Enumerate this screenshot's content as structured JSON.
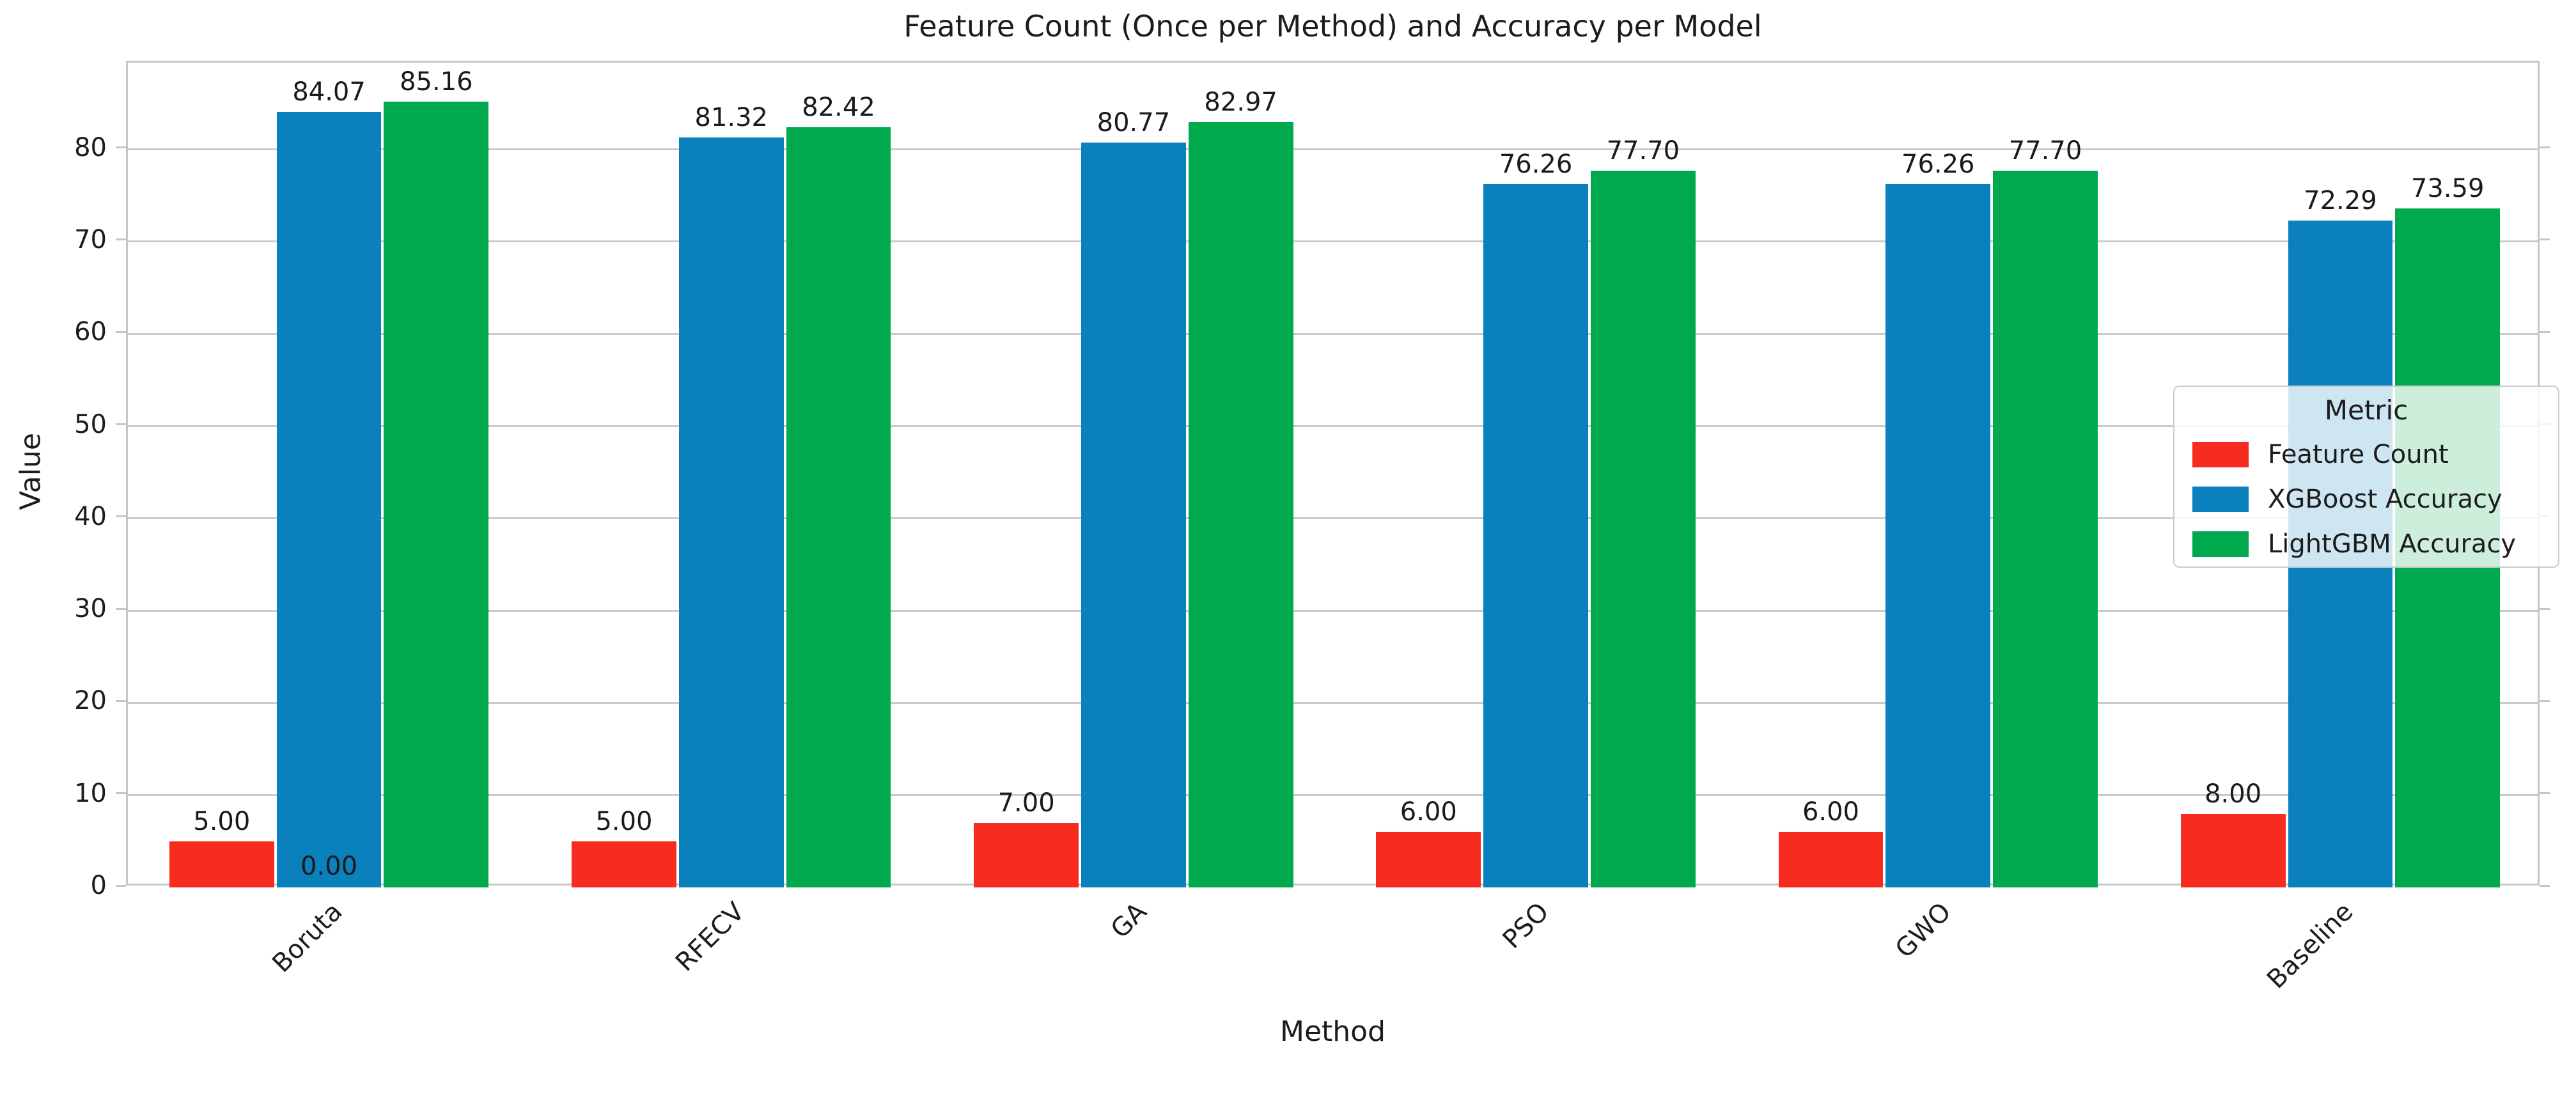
{
  "chart_data": {
    "type": "bar",
    "title": "Feature Count (Once per Method) and Accuracy per Model",
    "xlabel": "Method",
    "ylabel": "Value",
    "categories": [
      "Boruta",
      "RFECV",
      "GA",
      "PSO",
      "GWO",
      "Baseline"
    ],
    "series": [
      {
        "name": "Feature Count",
        "color": "#f82b21",
        "values": [
          5.0,
          5.0,
          7.0,
          6.0,
          6.0,
          8.0
        ]
      },
      {
        "name": "XGBoost Accuracy",
        "color": "#0a80bd",
        "values": [
          84.07,
          81.32,
          80.77,
          76.26,
          76.26,
          72.29
        ]
      },
      {
        "name": "LightGBM Accuracy",
        "color": "#00a94d",
        "values": [
          85.16,
          82.42,
          82.97,
          77.7,
          77.7,
          73.59
        ]
      }
    ],
    "bar_label_decimals": 2,
    "bar_labels": {
      "Feature Count": [
        "5.00",
        "5.00",
        "7.00",
        "6.00",
        "6.00",
        "8.00"
      ],
      "XGBoost Accuracy": [
        "84.07",
        "81.32",
        "80.77",
        "76.26",
        "76.26",
        "72.29"
      ],
      "LightGBM Accuracy": [
        "85.16",
        "82.42",
        "82.97",
        "77.70",
        "77.70",
        "73.59"
      ]
    },
    "extra_annotations": [
      {
        "text": "0.00",
        "category": "Boruta",
        "series_index": 1,
        "position": "base-of-bar"
      }
    ],
    "ylim": [
      0,
      89.4
    ],
    "y_ticks": [
      0,
      10,
      20,
      30,
      40,
      50,
      60,
      70,
      80
    ],
    "grid": "horizontal",
    "tick_label_rotation_deg": 45,
    "legend": {
      "title": "Metric",
      "position": "center-right",
      "entries": [
        "Feature Count",
        "XGBoost Accuracy",
        "LightGBM Accuracy"
      ]
    }
  },
  "colors": {
    "background": "#ffffff",
    "grid": "#cbcbcb",
    "spine": "#c6c6c6",
    "text": "#1c1c1c",
    "legend_background": "rgba(255,255,255,0.8)",
    "legend_border": "#cccccc"
  }
}
